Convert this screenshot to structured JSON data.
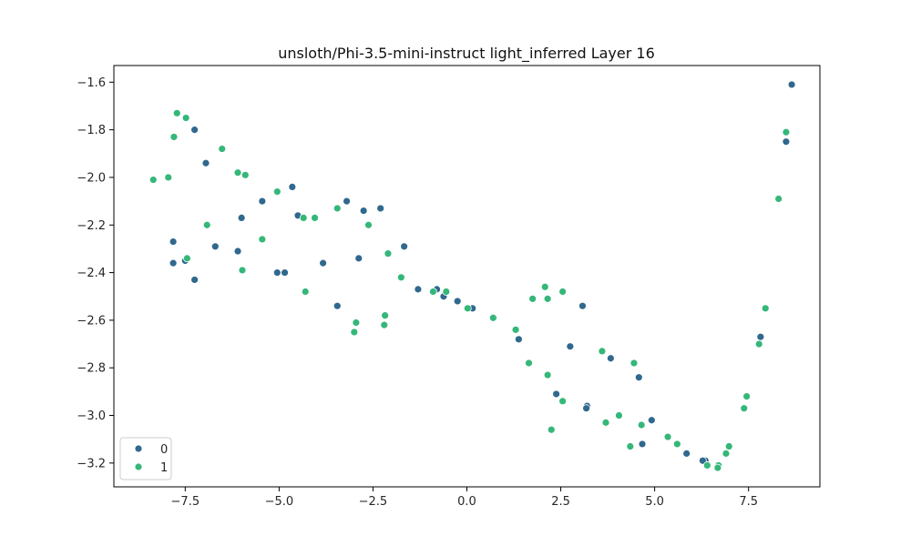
{
  "chart_data": {
    "type": "scatter",
    "title": "unsloth/Phi-3.5-mini-instruct light_inferred Layer 16",
    "xlabel": "",
    "ylabel": "",
    "xlim": [
      -9.4,
      9.4
    ],
    "ylim": [
      -3.3,
      -1.53
    ],
    "xticks": [
      -7.5,
      -5.0,
      -2.5,
      0.0,
      2.5,
      5.0,
      7.5
    ],
    "xtick_labels": [
      "−7.5",
      "−5.0",
      "−2.5",
      "0.0",
      "2.5",
      "5.0",
      "7.5"
    ],
    "yticks": [
      -3.2,
      -3.0,
      -2.8,
      -2.6,
      -2.4,
      -2.2,
      -2.0,
      -1.8,
      -1.6
    ],
    "ytick_labels": [
      "−3.2",
      "−3.0",
      "−2.8",
      "−2.6",
      "−2.4",
      "−2.2",
      "−2.0",
      "−1.8",
      "−1.6"
    ],
    "grid": false,
    "legend_position": "lower-left",
    "series": [
      {
        "name": "0",
        "color": "#30688e",
        "points": [
          [
            8.65,
            -1.61
          ],
          [
            8.5,
            -1.85
          ],
          [
            7.82,
            -2.67
          ],
          [
            6.35,
            -3.19
          ],
          [
            6.28,
            -3.19
          ],
          [
            5.85,
            -3.16
          ],
          [
            4.92,
            -3.02
          ],
          [
            4.67,
            -3.12
          ],
          [
            4.58,
            -2.84
          ],
          [
            3.83,
            -2.76
          ],
          [
            3.2,
            -2.96
          ],
          [
            3.18,
            -2.97
          ],
          [
            3.08,
            -2.54
          ],
          [
            2.75,
            -2.71
          ],
          [
            2.38,
            -2.91
          ],
          [
            1.38,
            -2.68
          ],
          [
            0.72,
            -2.59
          ],
          [
            0.15,
            -2.55
          ],
          [
            -0.25,
            -2.52
          ],
          [
            -0.62,
            -2.5
          ],
          [
            -0.8,
            -2.47
          ],
          [
            -1.3,
            -2.47
          ],
          [
            -1.67,
            -2.29
          ],
          [
            -2.3,
            -2.13
          ],
          [
            -2.75,
            -2.14
          ],
          [
            -2.88,
            -2.34
          ],
          [
            -3.2,
            -2.1
          ],
          [
            -3.45,
            -2.54
          ],
          [
            -3.83,
            -2.36
          ],
          [
            -4.5,
            -2.16
          ],
          [
            -4.65,
            -2.04
          ],
          [
            -4.85,
            -2.4
          ],
          [
            -5.05,
            -2.4
          ],
          [
            -5.45,
            -2.1
          ],
          [
            -6.0,
            -2.17
          ],
          [
            -6.1,
            -2.31
          ],
          [
            -6.7,
            -2.29
          ],
          [
            -6.95,
            -1.94
          ],
          [
            -7.25,
            -2.43
          ],
          [
            -7.25,
            -1.8
          ],
          [
            -7.5,
            -2.35
          ],
          [
            -7.82,
            -2.36
          ],
          [
            -7.82,
            -2.27
          ]
        ]
      },
      {
        "name": "1",
        "color": "#35b779",
        "points": [
          [
            8.5,
            -1.81
          ],
          [
            8.3,
            -2.09
          ],
          [
            7.95,
            -2.55
          ],
          [
            7.78,
            -2.7
          ],
          [
            7.45,
            -2.92
          ],
          [
            7.38,
            -2.97
          ],
          [
            6.98,
            -3.13
          ],
          [
            6.9,
            -3.16
          ],
          [
            6.7,
            -3.21
          ],
          [
            6.68,
            -3.22
          ],
          [
            6.4,
            -3.21
          ],
          [
            5.6,
            -3.12
          ],
          [
            5.35,
            -3.09
          ],
          [
            4.65,
            -3.04
          ],
          [
            4.45,
            -2.78
          ],
          [
            4.35,
            -3.13
          ],
          [
            4.05,
            -3.0
          ],
          [
            3.7,
            -3.03
          ],
          [
            3.6,
            -2.73
          ],
          [
            2.55,
            -2.48
          ],
          [
            2.55,
            -2.94
          ],
          [
            2.25,
            -3.06
          ],
          [
            2.15,
            -2.51
          ],
          [
            2.15,
            -2.83
          ],
          [
            2.08,
            -2.46
          ],
          [
            1.75,
            -2.51
          ],
          [
            1.65,
            -2.78
          ],
          [
            1.3,
            -2.64
          ],
          [
            0.7,
            -2.59
          ],
          [
            0.02,
            -2.55
          ],
          [
            -0.55,
            -2.48
          ],
          [
            -0.9,
            -2.48
          ],
          [
            -1.75,
            -2.42
          ],
          [
            -2.1,
            -2.32
          ],
          [
            -2.18,
            -2.58
          ],
          [
            -2.2,
            -2.62
          ],
          [
            -2.62,
            -2.2
          ],
          [
            -2.95,
            -2.61
          ],
          [
            -3.0,
            -2.65
          ],
          [
            -3.45,
            -2.13
          ],
          [
            -4.05,
            -2.17
          ],
          [
            -4.35,
            -2.17
          ],
          [
            -4.3,
            -2.48
          ],
          [
            -5.05,
            -2.06
          ],
          [
            -5.45,
            -2.26
          ],
          [
            -5.9,
            -1.99
          ],
          [
            -5.98,
            -2.39
          ],
          [
            -6.1,
            -1.98
          ],
          [
            -6.52,
            -1.88
          ],
          [
            -6.92,
            -2.2
          ],
          [
            -7.45,
            -2.34
          ],
          [
            -7.48,
            -1.75
          ],
          [
            -7.72,
            -1.73
          ],
          [
            -7.8,
            -1.83
          ],
          [
            -7.95,
            -2.0
          ],
          [
            -8.35,
            -2.01
          ]
        ]
      }
    ]
  }
}
